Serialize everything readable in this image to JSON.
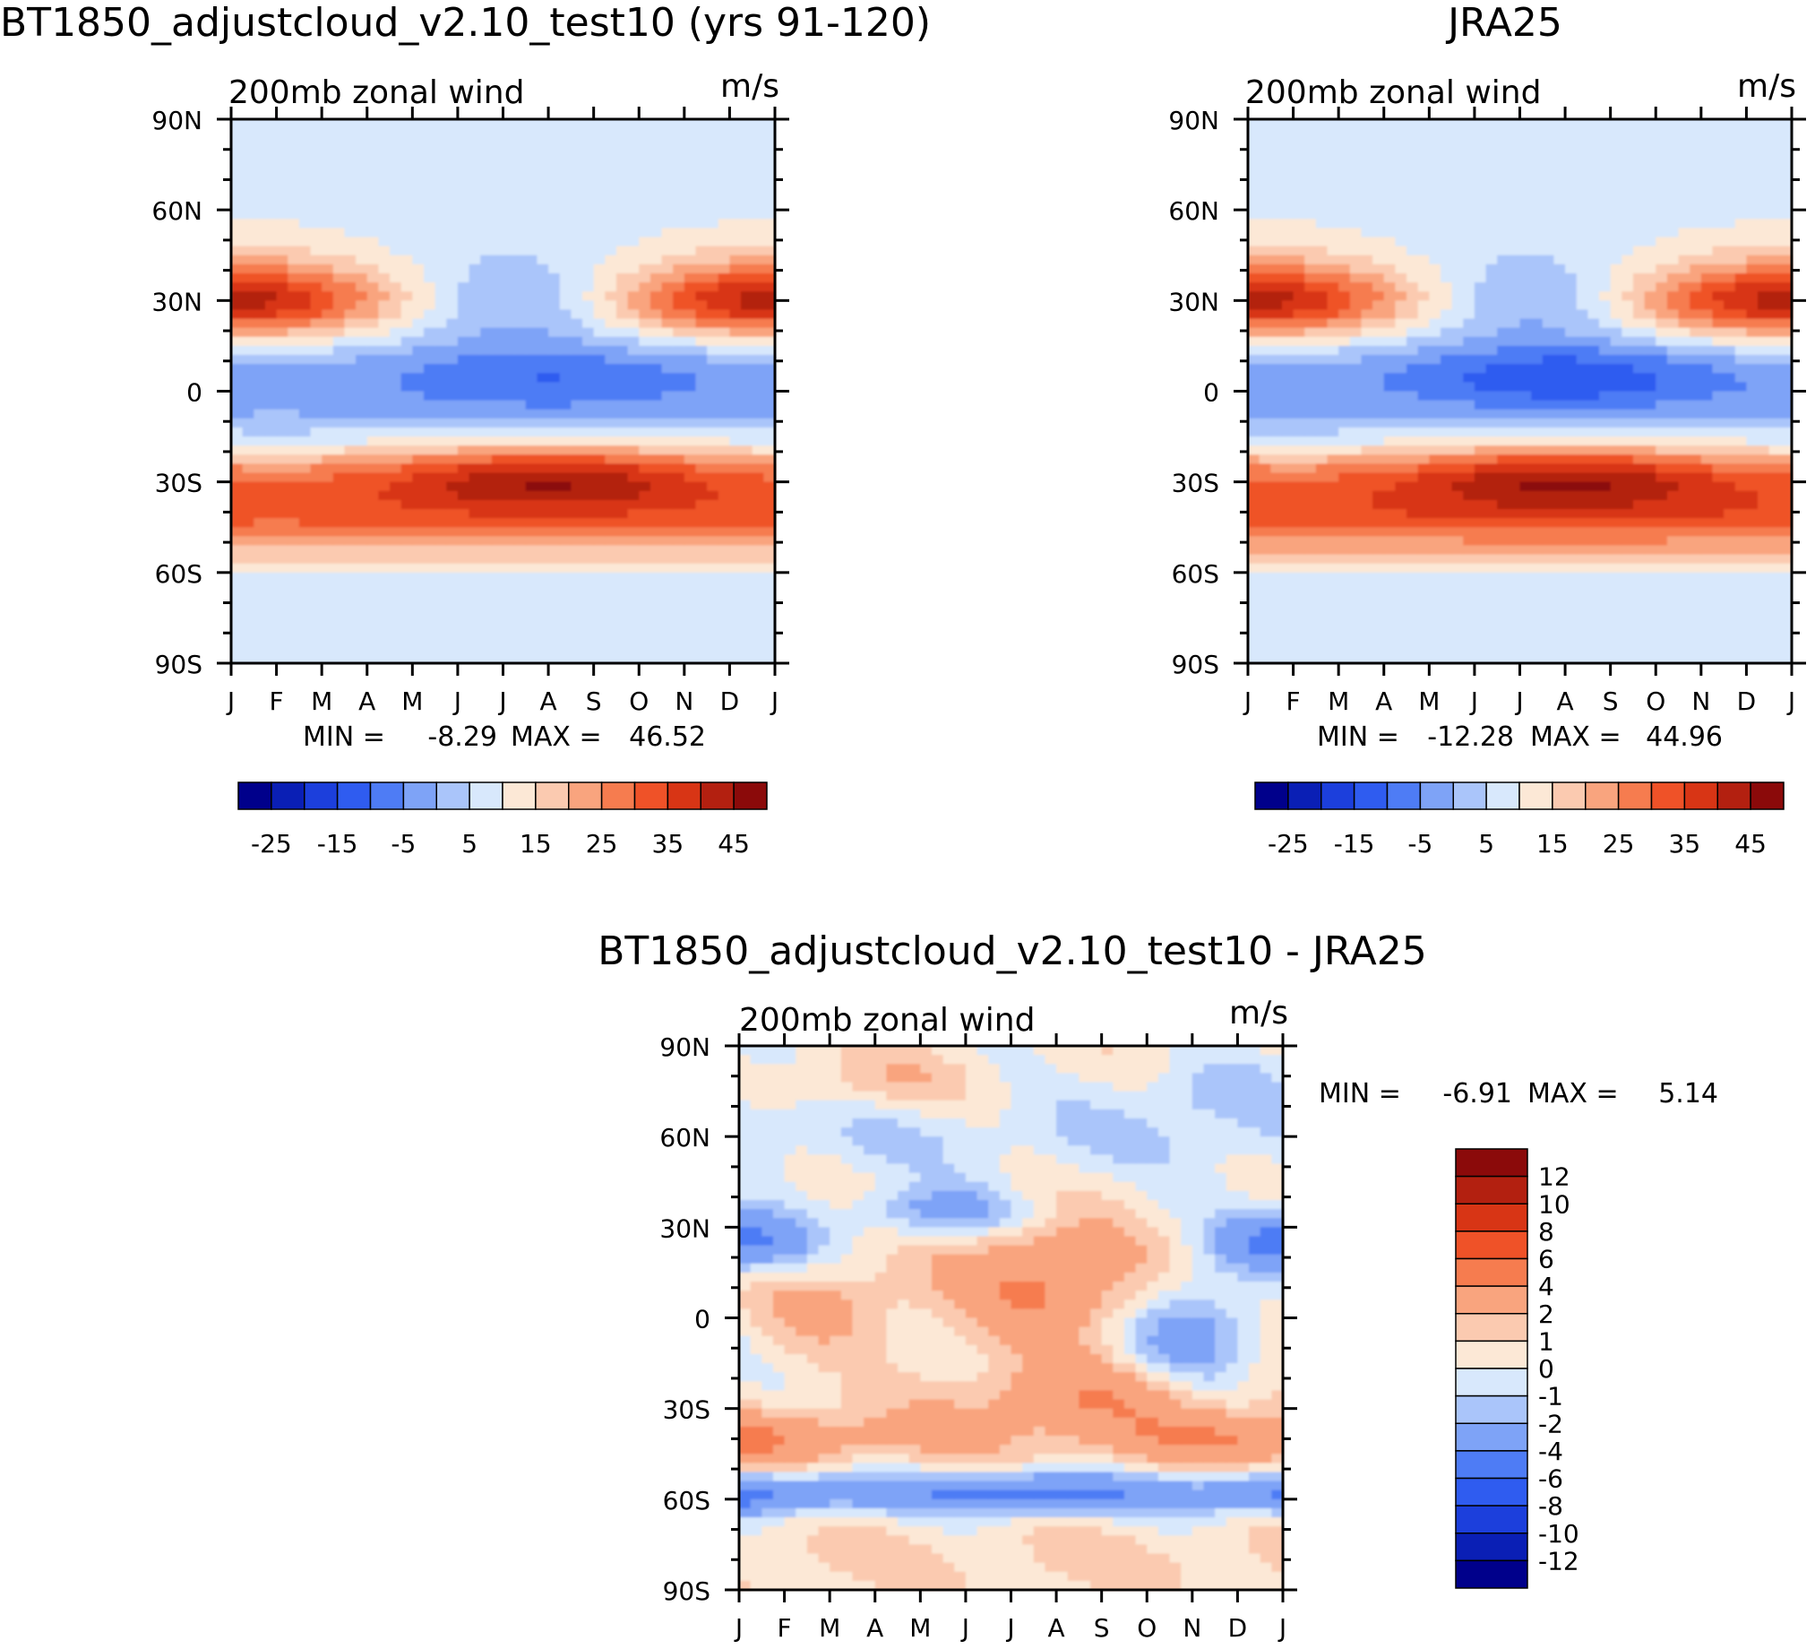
{
  "chart_data": [
    {
      "type": "heatmap",
      "panel": "model",
      "title": "BT1850_adjustcloud_v2.10_test10 (yrs 91-120)",
      "left_label": "200mb zonal wind",
      "units_label": "m/s",
      "x_tick_labels": [
        "J",
        "F",
        "M",
        "A",
        "M",
        "J",
        "J",
        "A",
        "S",
        "O",
        "N",
        "D",
        "J"
      ],
      "y_tick_labels": [
        "90N",
        "60N",
        "30N",
        "0",
        "30S",
        "60S",
        "90S"
      ],
      "y_range": [
        -90,
        90
      ],
      "min_label": "MIN =",
      "min_value": "-8.29",
      "max_label": "MAX =",
      "max_value": "46.52",
      "colorbar_labels": [
        "-25",
        "-15",
        "-5",
        "5",
        "15",
        "25",
        "35",
        "45"
      ],
      "levels": [
        -30,
        -25,
        -20,
        -15,
        -10,
        -5,
        0,
        5,
        10,
        15,
        20,
        25,
        30,
        35,
        40,
        45,
        50
      ],
      "features": [
        {
          "name": "NH jet",
          "lat": 30,
          "peak": "winter"
        },
        {
          "name": "SH jet",
          "lat": -30,
          "peak": "winter (JJA)"
        },
        {
          "name": "tropical easterlies",
          "lat": 5,
          "peak": "JJA"
        }
      ]
    },
    {
      "type": "heatmap",
      "panel": "obs",
      "title": "JRA25",
      "left_label": "200mb zonal wind",
      "units_label": "m/s",
      "x_tick_labels": [
        "J",
        "F",
        "M",
        "A",
        "M",
        "J",
        "J",
        "A",
        "S",
        "O",
        "N",
        "D",
        "J"
      ],
      "y_tick_labels": [
        "90N",
        "60N",
        "30N",
        "0",
        "30S",
        "60S",
        "90S"
      ],
      "y_range": [
        -90,
        90
      ],
      "min_label": "MIN =",
      "min_value": "-12.28",
      "max_label": "MAX =",
      "max_value": "44.96",
      "colorbar_labels": [
        "-25",
        "-15",
        "-5",
        "5",
        "15",
        "25",
        "35",
        "45"
      ],
      "levels": [
        -30,
        -25,
        -20,
        -15,
        -10,
        -5,
        0,
        5,
        10,
        15,
        20,
        25,
        30,
        35,
        40,
        45,
        50
      ]
    },
    {
      "type": "heatmap",
      "panel": "difference",
      "title": "BT1850_adjustcloud_v2.10_test10 - JRA25",
      "left_label": "200mb zonal wind",
      "units_label": "m/s",
      "x_tick_labels": [
        "J",
        "F",
        "M",
        "A",
        "M",
        "J",
        "J",
        "A",
        "S",
        "O",
        "N",
        "D",
        "J"
      ],
      "y_tick_labels": [
        "90N",
        "60N",
        "30N",
        "0",
        "30S",
        "60S",
        "90S"
      ],
      "y_range": [
        -90,
        90
      ],
      "min_label": "MIN =",
      "min_value": "-6.91",
      "max_label": "MAX =",
      "max_value": "5.14",
      "colorbar_labels": [
        "12",
        "10",
        "8",
        "6",
        "4",
        "2",
        "1",
        "0",
        "-1",
        "-2",
        "-4",
        "-6",
        "-8",
        "-10",
        "-12"
      ],
      "levels": [
        -14,
        -12,
        -10,
        -8,
        -6,
        -4,
        -2,
        -1,
        0,
        1,
        2,
        4,
        6,
        8,
        10,
        12,
        14
      ]
    }
  ],
  "palette": [
    "#00008b",
    "#0a1fb5",
    "#1c3fdc",
    "#2f5cf0",
    "#4e7cf5",
    "#7ea3f7",
    "#aac5fa",
    "#d8e8fc",
    "#fce8d6",
    "#fbcab0",
    "#f9a47e",
    "#f67c4f",
    "#ef5228",
    "#d83515",
    "#b32010",
    "#8b0a0a"
  ]
}
